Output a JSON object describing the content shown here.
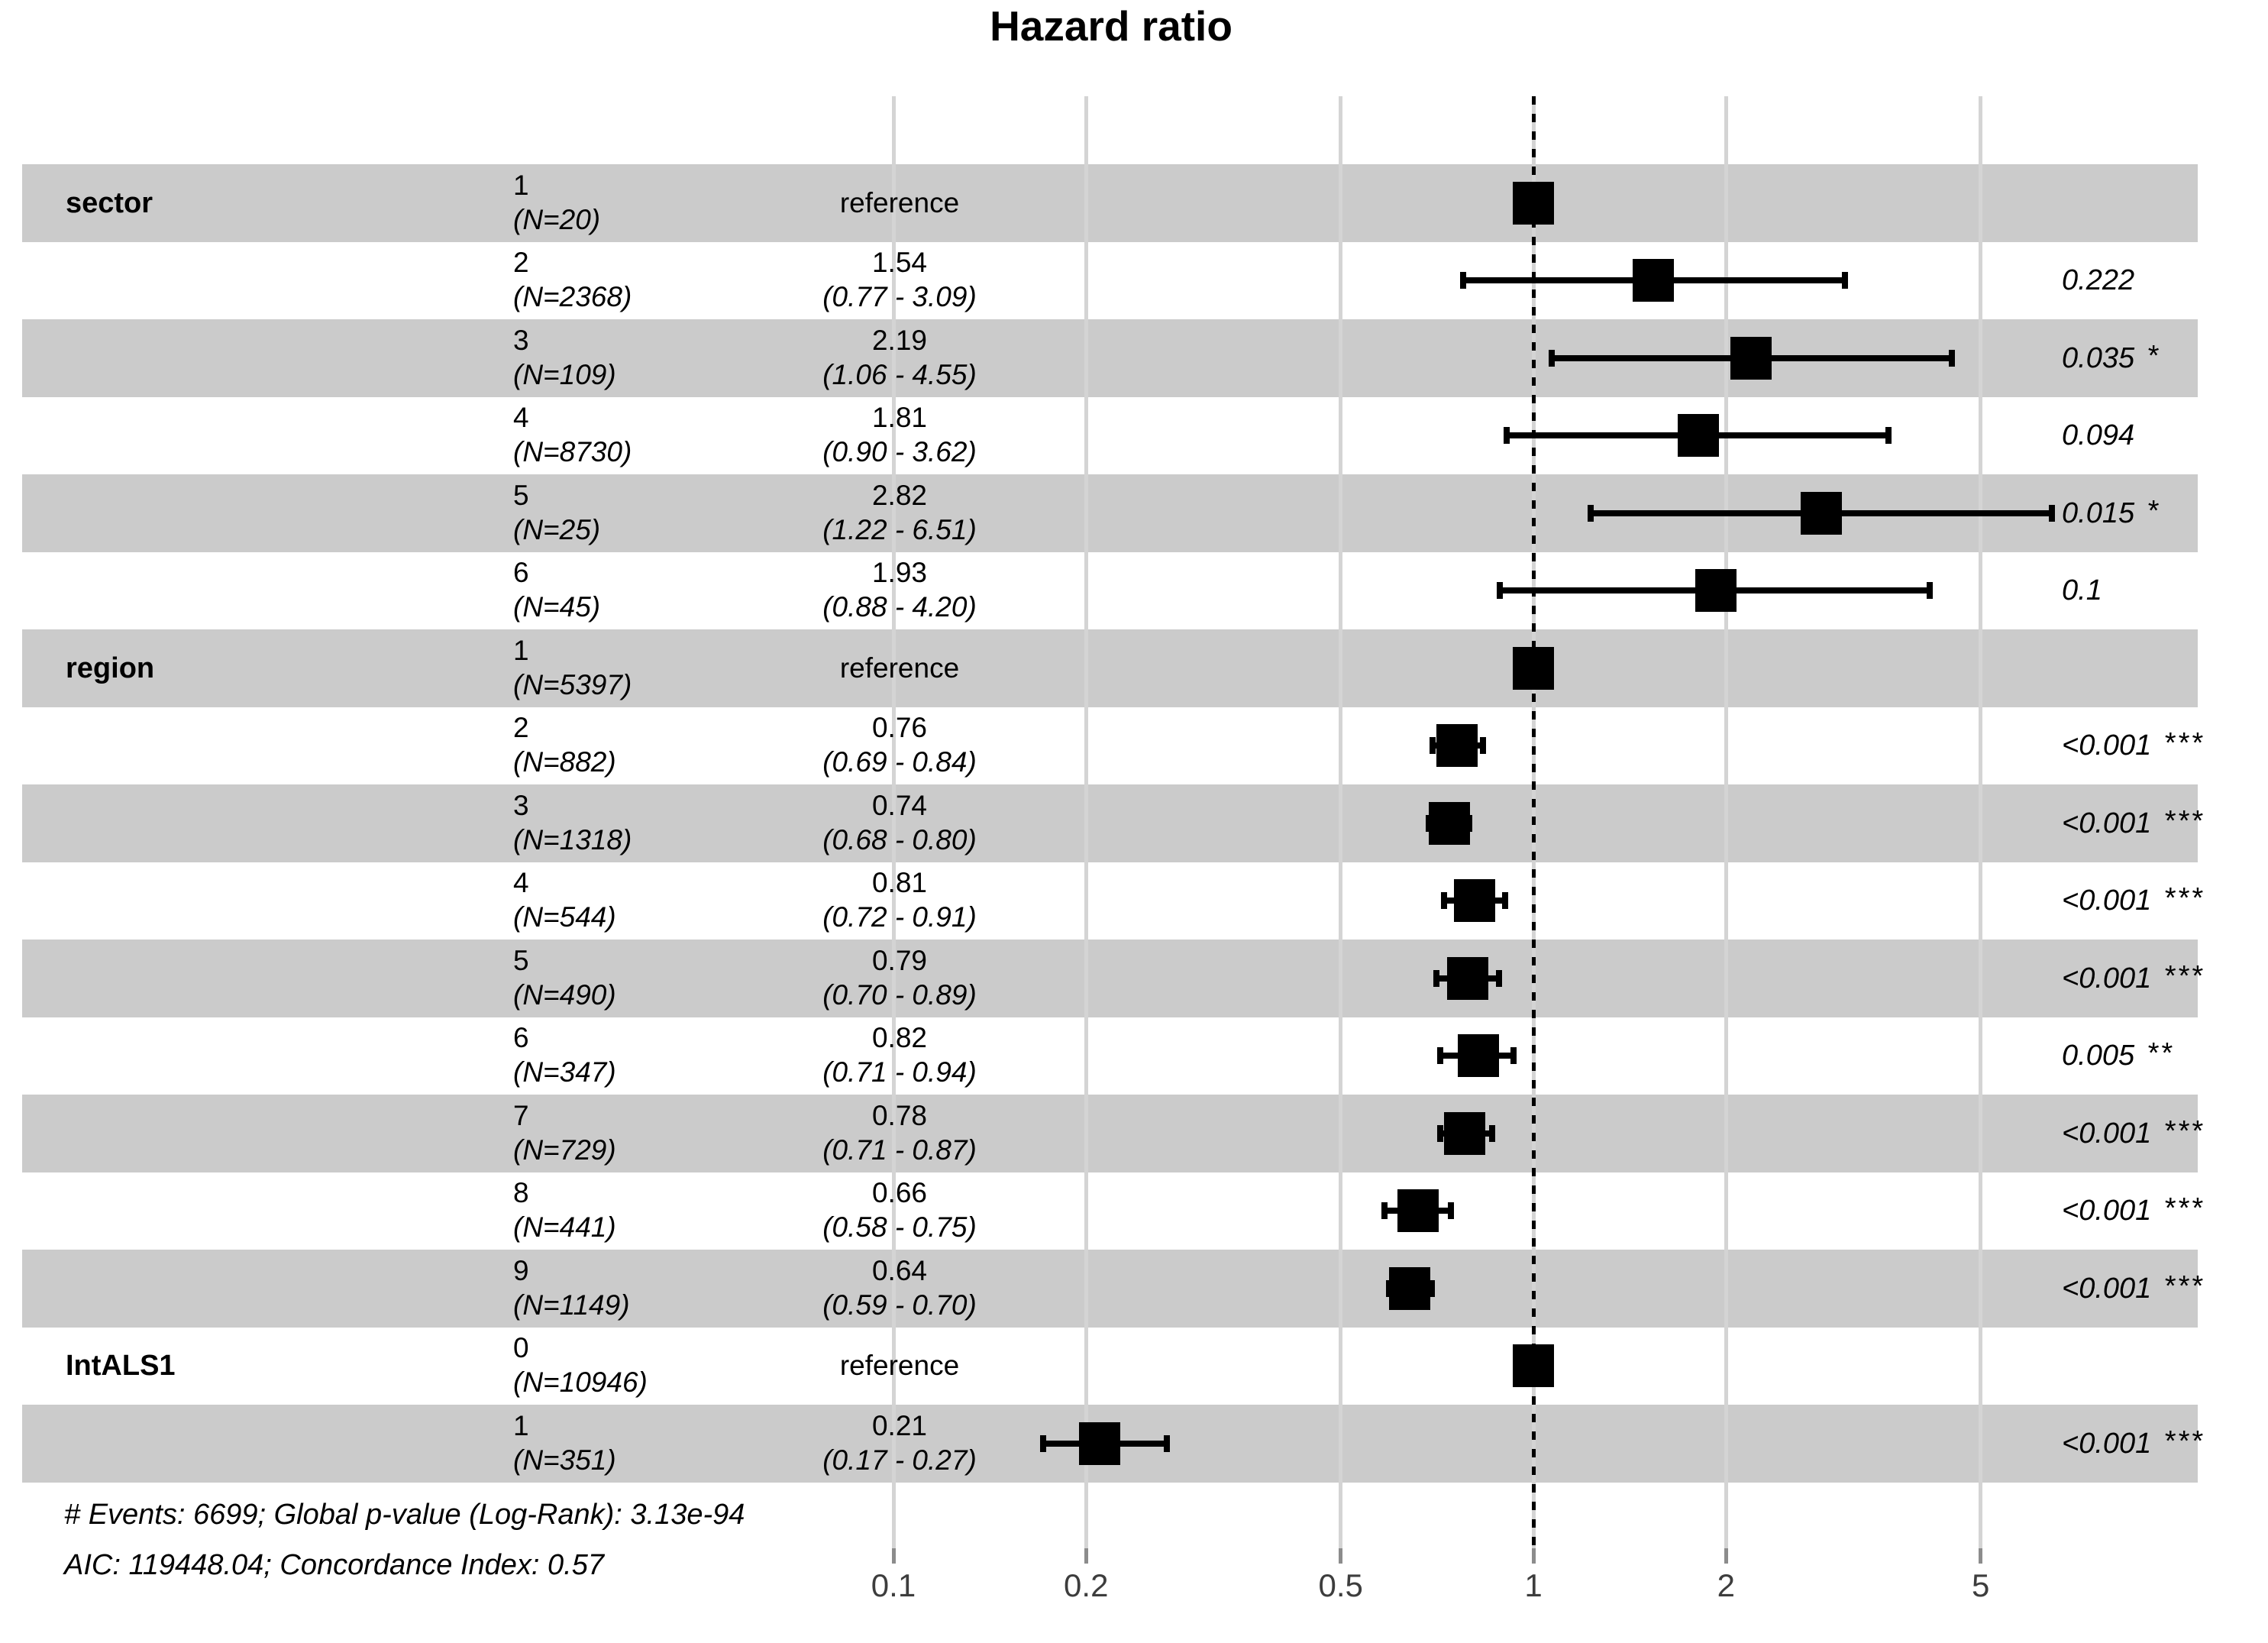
{
  "title": "Hazard ratio",
  "footer": {
    "line1": "# Events: 6699; Global p-value (Log-Rank): 3.13e-94",
    "line2": "AIC: 119448.04; Concordance Index: 0.57"
  },
  "colors": {
    "stripe_gray": "#cbcbcb",
    "grid_gray": "#d4d4d4",
    "tick_gray": "#8c8c8c",
    "marker_black": "#000000",
    "axis_label_gray": "#3d3d3d"
  },
  "chart_data": {
    "type": "forest",
    "title": "Hazard ratio",
    "x_scale": "log10",
    "x_ticks": [
      0.1,
      0.2,
      0.5,
      1,
      2,
      5
    ],
    "x_tick_labels": [
      "0.1",
      "0.2",
      "0.5",
      "1",
      "2",
      "5"
    ],
    "reference_line": 1,
    "legend": "squares = hazard ratio point estimates, horizontal bars = 95% CI, shaded stripes = alternating rows",
    "rows": [
      {
        "group": "sector",
        "level": "1",
        "n": "(N=20)",
        "estimate_label": "reference",
        "ci_label": "",
        "hr": 1.0,
        "ci_low": null,
        "ci_high": null,
        "p_label": "",
        "significance": "",
        "shaded": true
      },
      {
        "group": "",
        "level": "2",
        "n": "(N=2368)",
        "estimate_label": "1.54",
        "ci_label": "(0.77 - 3.09)",
        "hr": 1.54,
        "ci_low": 0.77,
        "ci_high": 3.09,
        "p_label": "0.222",
        "significance": "",
        "shaded": false
      },
      {
        "group": "",
        "level": "3",
        "n": "(N=109)",
        "estimate_label": "2.19",
        "ci_label": "(1.06 - 4.55)",
        "hr": 2.19,
        "ci_low": 1.06,
        "ci_high": 4.55,
        "p_label": "0.035",
        "significance": "*",
        "shaded": true
      },
      {
        "group": "",
        "level": "4",
        "n": "(N=8730)",
        "estimate_label": "1.81",
        "ci_label": "(0.90 - 3.62)",
        "hr": 1.81,
        "ci_low": 0.9,
        "ci_high": 3.62,
        "p_label": "0.094",
        "significance": "",
        "shaded": false
      },
      {
        "group": "",
        "level": "5",
        "n": "(N=25)",
        "estimate_label": "2.82",
        "ci_label": "(1.22 - 6.51)",
        "hr": 2.82,
        "ci_low": 1.22,
        "ci_high": 6.51,
        "p_label": "0.015",
        "significance": "*",
        "shaded": true
      },
      {
        "group": "",
        "level": "6",
        "n": "(N=45)",
        "estimate_label": "1.93",
        "ci_label": "(0.88 - 4.20)",
        "hr": 1.93,
        "ci_low": 0.88,
        "ci_high": 4.2,
        "p_label": "0.1",
        "significance": "",
        "shaded": false
      },
      {
        "group": "region",
        "level": "1",
        "n": "(N=5397)",
        "estimate_label": "reference",
        "ci_label": "",
        "hr": 1.0,
        "ci_low": null,
        "ci_high": null,
        "p_label": "",
        "significance": "",
        "shaded": true
      },
      {
        "group": "",
        "level": "2",
        "n": "(N=882)",
        "estimate_label": "0.76",
        "ci_label": "(0.69 - 0.84)",
        "hr": 0.76,
        "ci_low": 0.69,
        "ci_high": 0.84,
        "p_label": "<0.001",
        "significance": "***",
        "shaded": false
      },
      {
        "group": "",
        "level": "3",
        "n": "(N=1318)",
        "estimate_label": "0.74",
        "ci_label": "(0.68 - 0.80)",
        "hr": 0.74,
        "ci_low": 0.68,
        "ci_high": 0.8,
        "p_label": "<0.001",
        "significance": "***",
        "shaded": true
      },
      {
        "group": "",
        "level": "4",
        "n": "(N=544)",
        "estimate_label": "0.81",
        "ci_label": "(0.72 - 0.91)",
        "hr": 0.81,
        "ci_low": 0.72,
        "ci_high": 0.91,
        "p_label": "<0.001",
        "significance": "***",
        "shaded": false
      },
      {
        "group": "",
        "level": "5",
        "n": "(N=490)",
        "estimate_label": "0.79",
        "ci_label": "(0.70 - 0.89)",
        "hr": 0.79,
        "ci_low": 0.7,
        "ci_high": 0.89,
        "p_label": "<0.001",
        "significance": "***",
        "shaded": true
      },
      {
        "group": "",
        "level": "6",
        "n": "(N=347)",
        "estimate_label": "0.82",
        "ci_label": "(0.71 - 0.94)",
        "hr": 0.82,
        "ci_low": 0.71,
        "ci_high": 0.94,
        "p_label": "0.005",
        "significance": "**",
        "shaded": false
      },
      {
        "group": "",
        "level": "7",
        "n": "(N=729)",
        "estimate_label": "0.78",
        "ci_label": "(0.71 - 0.87)",
        "hr": 0.78,
        "ci_low": 0.71,
        "ci_high": 0.87,
        "p_label": "<0.001",
        "significance": "***",
        "shaded": true
      },
      {
        "group": "",
        "level": "8",
        "n": "(N=441)",
        "estimate_label": "0.66",
        "ci_label": "(0.58 - 0.75)",
        "hr": 0.66,
        "ci_low": 0.58,
        "ci_high": 0.75,
        "p_label": "<0.001",
        "significance": "***",
        "shaded": false
      },
      {
        "group": "",
        "level": "9",
        "n": "(N=1149)",
        "estimate_label": "0.64",
        "ci_label": "(0.59 - 0.70)",
        "hr": 0.64,
        "ci_low": 0.59,
        "ci_high": 0.7,
        "p_label": "<0.001",
        "significance": "***",
        "shaded": true
      },
      {
        "group": "IntALS1",
        "level": "0",
        "n": "(N=10946)",
        "estimate_label": "reference",
        "ci_label": "",
        "hr": 1.0,
        "ci_low": null,
        "ci_high": null,
        "p_label": "",
        "significance": "",
        "shaded": false
      },
      {
        "group": "",
        "level": "1",
        "n": "(N=351)",
        "estimate_label": "0.21",
        "ci_label": "(0.17 - 0.27)",
        "hr": 0.21,
        "ci_low": 0.17,
        "ci_high": 0.27,
        "p_label": "<0.001",
        "significance": "***",
        "shaded": true
      }
    ],
    "footnotes": [
      "# Events: 6699; Global p-value (Log-Rank): 3.13e-94",
      "AIC: 119448.04; Concordance Index: 0.57"
    ]
  }
}
